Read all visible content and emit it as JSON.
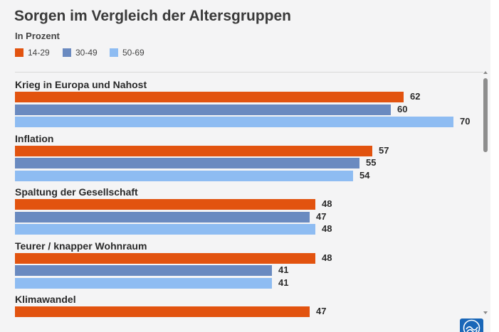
{
  "colors": {
    "series_14_29": "#e2530f",
    "series_30_49": "#6a8ac0",
    "series_50_69": "#8ebcf2",
    "panel": "#f4f4f5",
    "logo": "#1a67b8"
  },
  "icons": {
    "scroll_up": "scroll-up-arrow-icon",
    "scroll_down": "scroll-down-arrow-icon",
    "logo": "broadcaster-logo-icon"
  },
  "chart_data": {
    "type": "bar",
    "orientation": "horizontal",
    "title": "Sorgen im Vergleich der Altersgruppen",
    "subtitle": "In Prozent",
    "legend_placement": "top-left",
    "grid": false,
    "xlim": [
      0,
      75
    ],
    "categories": [
      "Krieg in Europa und Nahost",
      "Inflation",
      "Spaltung der Gesellschaft",
      "Teurer / knapper Wohnraum",
      "Klimawandel"
    ],
    "series": [
      {
        "name": "14-29",
        "color": "#e2530f",
        "values": [
          62,
          57,
          48,
          48,
          47
        ]
      },
      {
        "name": "30-49",
        "color": "#6a8ac0",
        "values": [
          60,
          55,
          47,
          41,
          null
        ]
      },
      {
        "name": "50-69",
        "color": "#8ebcf2",
        "values": [
          70,
          54,
          48,
          41,
          null
        ]
      }
    ]
  }
}
